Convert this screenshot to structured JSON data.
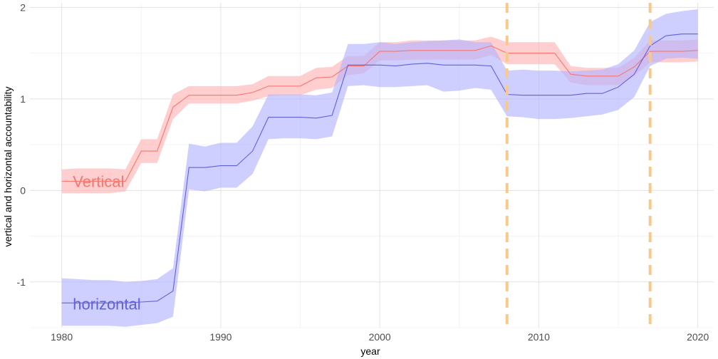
{
  "chart_data": {
    "type": "line",
    "title": "",
    "xlabel": "year",
    "ylabel": "vertical and horizontal accountability",
    "xlim": [
      1978,
      2021
    ],
    "ylim": [
      -1.5,
      2.05
    ],
    "x_ticks": [
      1980,
      1990,
      2000,
      2010,
      2020
    ],
    "x_tick_labels": [
      "1980",
      "1990",
      "2000",
      "2010",
      "2020"
    ],
    "y_ticks": [
      -1,
      0,
      1,
      2
    ],
    "y_tick_labels": [
      "-1",
      "0",
      "1",
      "2"
    ],
    "grid": true,
    "legend": "none",
    "x": [
      1980,
      1981,
      1982,
      1983,
      1984,
      1985,
      1986,
      1987,
      1988,
      1989,
      1990,
      1991,
      1992,
      1993,
      1994,
      1995,
      1996,
      1997,
      1998,
      1999,
      2000,
      2001,
      2002,
      2003,
      2004,
      2005,
      2006,
      2007,
      2008,
      2009,
      2010,
      2011,
      2012,
      2013,
      2014,
      2015,
      2016,
      2017,
      2018,
      2019,
      2020
    ],
    "series": [
      {
        "name": "Vertical",
        "color": "#f8766d",
        "band_color": "#ffb3b3",
        "values": [
          0.1,
          0.1,
          0.1,
          0.1,
          0.1,
          0.43,
          0.43,
          0.91,
          1.04,
          1.04,
          1.04,
          1.04,
          1.07,
          1.14,
          1.14,
          1.14,
          1.23,
          1.24,
          1.36,
          1.36,
          1.52,
          1.52,
          1.53,
          1.53,
          1.53,
          1.53,
          1.53,
          1.58,
          1.5,
          1.5,
          1.5,
          1.5,
          1.27,
          1.25,
          1.25,
          1.25,
          1.35,
          1.52,
          1.52,
          1.52,
          1.53
        ],
        "lower": [
          -0.03,
          -0.03,
          -0.03,
          -0.03,
          -0.01,
          0.3,
          0.3,
          0.78,
          0.95,
          0.95,
          0.95,
          0.95,
          0.98,
          1.03,
          1.04,
          1.04,
          1.1,
          1.12,
          1.26,
          1.28,
          1.42,
          1.42,
          1.43,
          1.43,
          1.43,
          1.43,
          1.43,
          1.48,
          1.38,
          1.38,
          1.38,
          1.38,
          1.18,
          1.15,
          1.15,
          1.15,
          1.25,
          1.4,
          1.4,
          1.4,
          1.41
        ],
        "upper": [
          0.23,
          0.24,
          0.24,
          0.24,
          0.23,
          0.56,
          0.56,
          1.05,
          1.14,
          1.14,
          1.14,
          1.14,
          1.16,
          1.25,
          1.25,
          1.25,
          1.34,
          1.35,
          1.47,
          1.47,
          1.62,
          1.62,
          1.64,
          1.64,
          1.64,
          1.64,
          1.64,
          1.68,
          1.62,
          1.62,
          1.62,
          1.62,
          1.36,
          1.34,
          1.34,
          1.34,
          1.45,
          1.64,
          1.64,
          1.64,
          1.65
        ]
      },
      {
        "name": "horizontal",
        "color": "#6060e0",
        "band_color": "#b3b3ff",
        "values": [
          -1.23,
          -1.23,
          -1.23,
          -1.23,
          -1.23,
          -1.22,
          -1.21,
          -1.1,
          0.25,
          0.25,
          0.27,
          0.27,
          0.43,
          0.8,
          0.8,
          0.8,
          0.79,
          0.82,
          1.37,
          1.37,
          1.37,
          1.36,
          1.38,
          1.39,
          1.37,
          1.37,
          1.37,
          1.36,
          1.05,
          1.04,
          1.04,
          1.04,
          1.04,
          1.06,
          1.06,
          1.13,
          1.27,
          1.58,
          1.69,
          1.71,
          1.71
        ],
        "lower": [
          -1.48,
          -1.48,
          -1.48,
          -1.48,
          -1.49,
          -1.47,
          -1.45,
          -1.38,
          0.01,
          -0.01,
          0.03,
          0.03,
          0.18,
          0.56,
          0.57,
          0.57,
          0.56,
          0.59,
          1.14,
          1.15,
          1.13,
          1.13,
          1.14,
          1.15,
          1.08,
          1.09,
          1.12,
          1.1,
          0.81,
          0.8,
          0.78,
          0.78,
          0.79,
          0.81,
          0.83,
          0.88,
          1.02,
          1.36,
          1.44,
          1.45,
          1.44
        ],
        "upper": [
          -0.96,
          -0.97,
          -0.98,
          -0.98,
          -1.0,
          -0.99,
          -0.97,
          -0.85,
          0.51,
          0.48,
          0.52,
          0.52,
          0.7,
          1.05,
          1.05,
          1.05,
          1.04,
          1.07,
          1.6,
          1.6,
          1.62,
          1.6,
          1.62,
          1.63,
          1.64,
          1.65,
          1.62,
          1.62,
          1.31,
          1.32,
          1.31,
          1.31,
          1.3,
          1.31,
          1.32,
          1.38,
          1.53,
          1.84,
          1.93,
          1.96,
          1.98
        ]
      }
    ],
    "vlines": [
      {
        "x": 2008,
        "color": "#f7c98b"
      },
      {
        "x": 2017,
        "color": "#f7c98b"
      }
    ],
    "annotations": [
      {
        "series": 0,
        "text": "Vertical",
        "x": 1980.7,
        "y": 0.1
      },
      {
        "series": 1,
        "text": "horizontal",
        "x": 1980.7,
        "y": -1.24
      }
    ]
  }
}
